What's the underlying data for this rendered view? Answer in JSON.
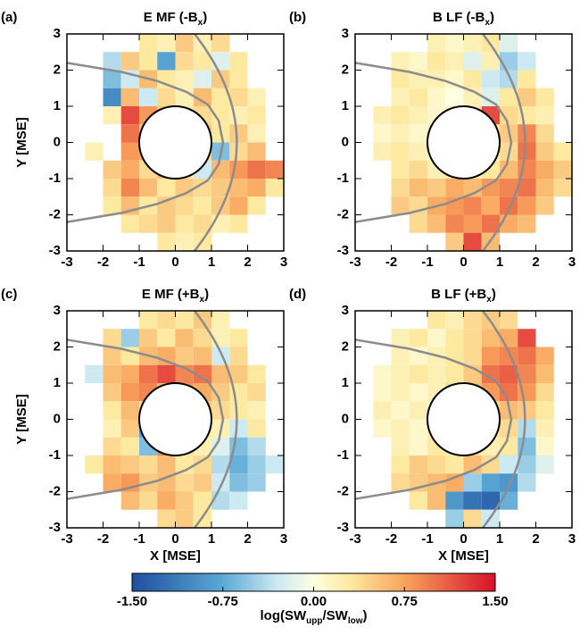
{
  "chart_data": [
    {
      "type": "heatmap",
      "panel_label": "(a)",
      "title": [
        "E MF (-B",
        "x",
        ")"
      ],
      "ylabel": "Y [MSE]",
      "xlim": [
        -3,
        3
      ],
      "ylim": [
        -3,
        3
      ],
      "xticks": [
        -3,
        -2,
        -1,
        0,
        1,
        2,
        3
      ],
      "yticks": [
        -3,
        -2,
        -1,
        0,
        1,
        2,
        3
      ],
      "x_edges": [
        -3,
        -2.5,
        -2,
        -1.5,
        -1,
        -0.5,
        0,
        0.5,
        1,
        1.5,
        2,
        2.5,
        3
      ],
      "y_edges": [
        3,
        2.5,
        2,
        1.5,
        1,
        0.5,
        0,
        -0.5,
        -1,
        -1.5,
        -2,
        -2.5,
        -3
      ],
      "values": [
        [
          null,
          null,
          null,
          null,
          0.3,
          0.2,
          0.5,
          0.2,
          0.4,
          null,
          null,
          null
        ],
        [
          null,
          null,
          -0.4,
          0.5,
          0.3,
          -0.8,
          0.4,
          0.3,
          -0.2,
          0.3,
          null,
          null
        ],
        [
          null,
          null,
          -0.6,
          -0.3,
          0.6,
          0.3,
          0.2,
          -0.2,
          0.5,
          0.3,
          null,
          null
        ],
        [
          null,
          null,
          -1.0,
          0.6,
          -0.3,
          0.4,
          0.2,
          0.6,
          0.3,
          0.4,
          0.2,
          null
        ],
        [
          null,
          null,
          0.2,
          1.2,
          0.8,
          0.5,
          0.3,
          0.4,
          0.3,
          0.2,
          0.3,
          null
        ],
        [
          null,
          null,
          null,
          1.0,
          0.6,
          null,
          null,
          0.5,
          0.3,
          0.5,
          0.2,
          null
        ],
        [
          null,
          0.2,
          null,
          0.8,
          0.7,
          null,
          null,
          0.4,
          -0.6,
          0.4,
          0.6,
          null
        ],
        [
          null,
          null,
          0.5,
          0.7,
          0.4,
          0.6,
          0.3,
          -0.3,
          0.6,
          0.8,
          1.0,
          0.9
        ],
        [
          null,
          null,
          0.4,
          0.9,
          0.6,
          0.3,
          0.5,
          0.4,
          0.5,
          0.6,
          0.7,
          0.3
        ],
        [
          null,
          null,
          0.3,
          0.6,
          0.3,
          0.5,
          0.4,
          0.3,
          0.5,
          0.7,
          0.3,
          null
        ],
        [
          null,
          null,
          null,
          0.3,
          0.4,
          0.5,
          0.3,
          0.4,
          0.2,
          0.3,
          null,
          null
        ],
        [
          null,
          null,
          null,
          null,
          null,
          0.3,
          0.2,
          0.3,
          null,
          null,
          null,
          null
        ]
      ]
    },
    {
      "type": "heatmap",
      "panel_label": "(b)",
      "title": [
        "B LF (-B",
        "x",
        ")"
      ],
      "xlim": [
        -3,
        3
      ],
      "ylim": [
        -3,
        3
      ],
      "xticks": [
        -3,
        -2,
        -1,
        0,
        1,
        2,
        3
      ],
      "yticks": [
        -3,
        -2,
        -1,
        0,
        1,
        2,
        3
      ],
      "x_edges": [
        -3,
        -2.5,
        -2,
        -1.5,
        -1,
        -0.5,
        0,
        0.5,
        1,
        1.5,
        2,
        2.5,
        3
      ],
      "y_edges": [
        3,
        2.5,
        2,
        1.5,
        1,
        0.5,
        0,
        -0.5,
        -1,
        -1.5,
        -2,
        -2.5,
        -3
      ],
      "values": [
        [
          null,
          null,
          null,
          null,
          0.2,
          0.1,
          0.2,
          0.3,
          -0.2,
          null,
          null,
          null
        ],
        [
          null,
          null,
          0.2,
          0.1,
          0.3,
          0.2,
          -0.2,
          0.2,
          -0.5,
          -0.3,
          null,
          null
        ],
        [
          null,
          null,
          0.3,
          0.2,
          0.2,
          0.1,
          0.3,
          -0.3,
          -0.4,
          0.3,
          null,
          null
        ],
        [
          null,
          null,
          0.2,
          0.3,
          0.1,
          0.0,
          0.2,
          -0.2,
          0.3,
          0.5,
          0.3,
          null
        ],
        [
          null,
          0.2,
          0.3,
          0.2,
          0.1,
          0.2,
          0.3,
          1.2,
          0.4,
          0.3,
          0.2,
          null
        ],
        [
          null,
          0.1,
          0.2,
          0.1,
          0.2,
          null,
          null,
          0.3,
          0.5,
          0.9,
          0.4,
          null
        ],
        [
          null,
          0.2,
          0.3,
          0.2,
          0.1,
          null,
          null,
          0.2,
          0.4,
          1.0,
          0.5,
          0.3
        ],
        [
          null,
          null,
          0.3,
          0.4,
          0.2,
          0.3,
          0.2,
          0.3,
          0.6,
          0.9,
          0.7,
          0.5
        ],
        [
          null,
          null,
          0.4,
          0.6,
          0.5,
          0.7,
          0.6,
          0.8,
          0.9,
          1.0,
          0.6,
          0.4
        ],
        [
          null,
          null,
          0.5,
          0.4,
          0.7,
          0.8,
          0.9,
          0.7,
          1.0,
          0.8,
          0.5,
          null
        ],
        [
          null,
          null,
          null,
          0.4,
          0.6,
          0.9,
          0.8,
          1.0,
          0.7,
          0.6,
          null,
          null
        ],
        [
          null,
          null,
          null,
          null,
          null,
          0.5,
          1.2,
          0.6,
          null,
          null,
          null,
          null
        ]
      ]
    },
    {
      "type": "heatmap",
      "panel_label": "(c)",
      "title": [
        "E MF (+B",
        "x",
        ")"
      ],
      "xlabel": "X [MSE]",
      "ylabel": "Y [MSE]",
      "xlim": [
        -3,
        3
      ],
      "ylim": [
        -3,
        3
      ],
      "xticks": [
        -3,
        -2,
        -1,
        0,
        1,
        2,
        3
      ],
      "yticks": [
        -3,
        -2,
        -1,
        0,
        1,
        2,
        3
      ],
      "x_edges": [
        -3,
        -2.5,
        -2,
        -1.5,
        -1,
        -0.5,
        0,
        0.5,
        1,
        1.5,
        2,
        2.5,
        3
      ],
      "y_edges": [
        3,
        2.5,
        2,
        1.5,
        1,
        0.5,
        0,
        -0.5,
        -1,
        -1.5,
        -2,
        -2.5,
        -3
      ],
      "values": [
        [
          null,
          null,
          null,
          null,
          0.3,
          0.4,
          0.3,
          0.5,
          0.2,
          null,
          null,
          null
        ],
        [
          null,
          null,
          0.4,
          -0.5,
          0.5,
          0.3,
          0.6,
          0.4,
          0.2,
          0.3,
          null,
          null
        ],
        [
          null,
          null,
          0.5,
          0.3,
          0.6,
          0.7,
          0.5,
          0.6,
          -0.3,
          0.4,
          null,
          null
        ],
        [
          null,
          -0.3,
          0.6,
          0.7,
          1.0,
          1.2,
          0.9,
          1.0,
          0.6,
          0.5,
          0.3,
          null
        ],
        [
          null,
          null,
          0.5,
          0.8,
          0.9,
          0.6,
          0.8,
          0.7,
          0.5,
          0.3,
          0.4,
          null
        ],
        [
          null,
          null,
          0.3,
          0.6,
          0.4,
          null,
          null,
          0.5,
          0.4,
          0.3,
          0.2,
          null
        ],
        [
          null,
          null,
          0.2,
          0.5,
          -0.8,
          null,
          null,
          0.3,
          0.2,
          -0.3,
          0.3,
          null
        ],
        [
          null,
          null,
          0.4,
          0.3,
          -0.6,
          0.9,
          0.4,
          0.2,
          -0.2,
          -0.6,
          -0.4,
          null
        ],
        [
          null,
          0.3,
          0.6,
          0.5,
          0.4,
          0.6,
          0.3,
          0.4,
          -0.4,
          -0.7,
          -0.5,
          -0.3
        ],
        [
          null,
          null,
          0.7,
          0.8,
          0.5,
          0.6,
          0.4,
          0.5,
          -0.3,
          -0.6,
          -0.5,
          null
        ],
        [
          null,
          null,
          null,
          0.6,
          0.4,
          0.7,
          0.5,
          0.3,
          -0.4,
          -0.3,
          null,
          null
        ],
        [
          null,
          null,
          null,
          null,
          null,
          0.4,
          0.5,
          0.3,
          null,
          null,
          null,
          null
        ]
      ]
    },
    {
      "type": "heatmap",
      "panel_label": "(d)",
      "title": [
        "B LF (+B",
        "x",
        ")"
      ],
      "xlabel": "X [MSE]",
      "xlim": [
        -3,
        3
      ],
      "ylim": [
        -3,
        3
      ],
      "xticks": [
        -3,
        -2,
        -1,
        0,
        1,
        2,
        3
      ],
      "yticks": [
        -3,
        -2,
        -1,
        0,
        1,
        2,
        3
      ],
      "x_edges": [
        -3,
        -2.5,
        -2,
        -1.5,
        -1,
        -0.5,
        0,
        0.5,
        1,
        1.5,
        2,
        2.5,
        3
      ],
      "y_edges": [
        3,
        2.5,
        2,
        1.5,
        1,
        0.5,
        0,
        -0.5,
        -1,
        -1.5,
        -2,
        -2.5,
        -3
      ],
      "values": [
        [
          null,
          null,
          null,
          null,
          0.3,
          0.2,
          0.4,
          0.5,
          0.4,
          null,
          null,
          null
        ],
        [
          null,
          null,
          0.2,
          0.3,
          0.1,
          0.3,
          0.4,
          0.6,
          0.7,
          1.2,
          null,
          null
        ],
        [
          null,
          null,
          0.2,
          0.1,
          0.2,
          0.3,
          0.4,
          0.8,
          0.9,
          1.0,
          0.7,
          null
        ],
        [
          null,
          0.1,
          0.2,
          0.3,
          0.2,
          0.3,
          0.5,
          1.0,
          1.1,
          0.9,
          0.6,
          null
        ],
        [
          null,
          0.1,
          0.2,
          0.1,
          0.2,
          0.4,
          0.6,
          0.8,
          1.0,
          0.8,
          0.4,
          null
        ],
        [
          null,
          0.2,
          0.1,
          0.2,
          0.1,
          null,
          null,
          0.4,
          0.6,
          0.5,
          0.3,
          null
        ],
        [
          null,
          0.1,
          0.2,
          0.1,
          0.2,
          null,
          null,
          0.3,
          0.4,
          -0.4,
          0.2,
          null
        ],
        [
          null,
          null,
          0.2,
          0.1,
          0.3,
          0.2,
          0.3,
          0.2,
          0.3,
          -0.6,
          0.1,
          null
        ],
        [
          null,
          null,
          0.3,
          0.5,
          0.4,
          0.3,
          0.6,
          0.4,
          -0.3,
          -0.5,
          -0.2,
          null
        ],
        [
          null,
          null,
          0.4,
          0.5,
          0.6,
          0.7,
          -0.5,
          -0.8,
          -0.9,
          -0.4,
          null,
          null
        ],
        [
          null,
          null,
          null,
          0.3,
          0.6,
          -0.9,
          -1.2,
          -1.3,
          -0.7,
          null,
          null,
          null
        ],
        [
          null,
          null,
          null,
          null,
          null,
          -0.5,
          0.4,
          -0.3,
          null,
          null,
          null,
          null
        ]
      ]
    }
  ],
  "colorbar": {
    "label": [
      "log(SW",
      "upp",
      "/SW",
      "low",
      ")"
    ],
    "lim": [
      -1.5,
      1.5
    ],
    "ticks": [
      {
        "value": -1.5,
        "label": "-1.50"
      },
      {
        "value": -0.75,
        "label": "-0.75"
      },
      {
        "value": 0,
        "label": "0.00"
      },
      {
        "value": 0.75,
        "label": "0.75"
      },
      {
        "value": 1.5,
        "label": "1.50"
      }
    ]
  }
}
